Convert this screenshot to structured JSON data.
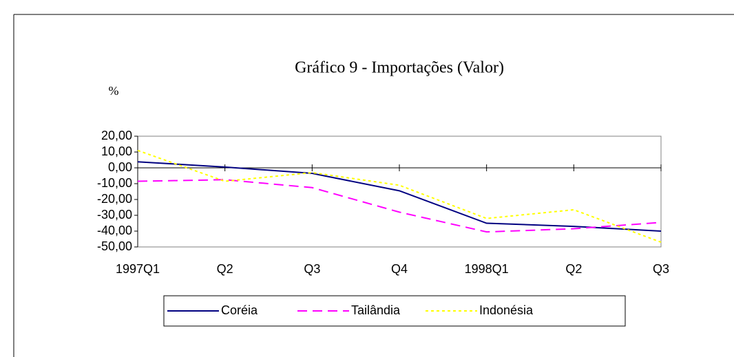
{
  "chart_data": {
    "type": "line",
    "title": "Gráfico 9 - Importações (Valor)",
    "y_label": "%",
    "categories": [
      "1997Q1",
      "Q2",
      "Q3",
      "Q4",
      "1998Q1",
      "Q2",
      "Q3"
    ],
    "series": [
      {
        "name": "Coréia",
        "color": "#000080",
        "dash": "solid",
        "values": [
          3.8,
          0.5,
          -3.5,
          -14.5,
          -35,
          -37,
          -40
        ]
      },
      {
        "name": "Tailândia",
        "color": "#ff00ff",
        "dash": "dashed",
        "values": [
          -8.5,
          -7.5,
          -12.5,
          -28,
          -40.5,
          -38.5,
          -34.5
        ]
      },
      {
        "name": "Indonésia",
        "color": "#ffff00",
        "dash": "dotted",
        "values": [
          11,
          -8.5,
          -3,
          -11,
          -32,
          -26.5,
          -47
        ]
      }
    ],
    "ylim": [
      -50,
      20
    ],
    "yticks": [
      {
        "value": -50,
        "label": "-50,00"
      },
      {
        "value": -40,
        "label": "-40,00"
      },
      {
        "value": -30,
        "label": "-30,00"
      },
      {
        "value": -20,
        "label": "-20,00"
      },
      {
        "value": -10,
        "label": "-10,00"
      },
      {
        "value": 0,
        "label": "0,00"
      },
      {
        "value": 10,
        "label": "10,00"
      },
      {
        "value": 20,
        "label": "20,00"
      }
    ],
    "legend": "bottom"
  }
}
